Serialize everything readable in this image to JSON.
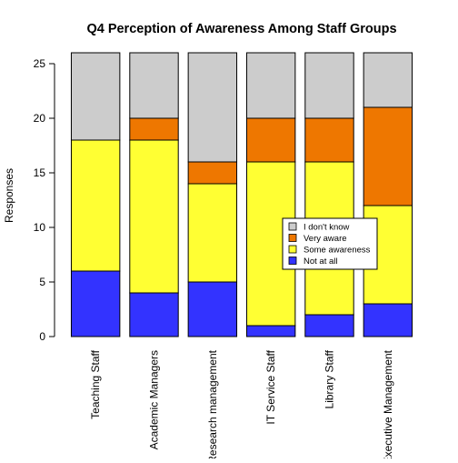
{
  "chart_data": {
    "type": "bar",
    "stacked": true,
    "title": "Q4 Perception of Awareness Among Staff Groups",
    "xlabel": "",
    "ylabel": "Responses",
    "ylim": [
      0,
      26
    ],
    "yticks": [
      0,
      5,
      10,
      15,
      20,
      25
    ],
    "grid": false,
    "legend_position": "right-center",
    "categories": [
      "Teaching Staff",
      "Academic Managers",
      "Research management",
      "IT Service Staff",
      "Library Staff",
      "Executive Management"
    ],
    "series": [
      {
        "name": "Not at all",
        "color": "#3333ff",
        "values": [
          6,
          4,
          5,
          1,
          2,
          3
        ]
      },
      {
        "name": "Some awareness",
        "color": "#ffff33",
        "values": [
          12,
          14,
          9,
          15,
          14,
          9
        ]
      },
      {
        "name": "Very aware",
        "color": "#ee7700",
        "values": [
          0,
          2,
          2,
          4,
          4,
          9
        ]
      },
      {
        "name": "I don't know",
        "color": "#cccccc",
        "values": [
          8,
          6,
          10,
          6,
          6,
          5
        ]
      }
    ],
    "legend_order": [
      "I don't know",
      "Very aware",
      "Some awareness",
      "Not at all"
    ]
  }
}
